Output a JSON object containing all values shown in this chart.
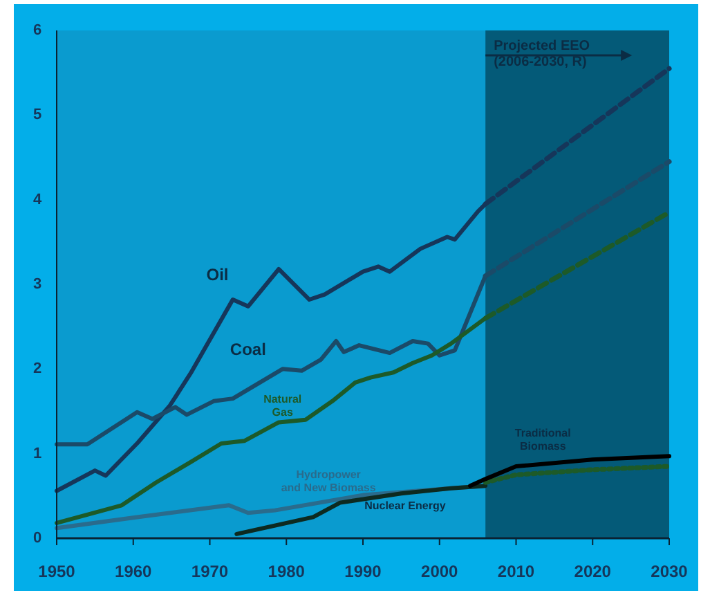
{
  "chart_data": {
    "type": "line",
    "xlim": [
      1950,
      2030
    ],
    "ylim": [
      0,
      6
    ],
    "xticks": [
      1950,
      1960,
      1970,
      1980,
      1990,
      2000,
      2010,
      2020,
      2030
    ],
    "yticks": [
      0,
      1,
      2,
      3,
      4,
      5,
      6
    ],
    "grid": false,
    "bands": [
      {
        "axis": "x",
        "from": 2006,
        "to": 2030,
        "label": "Projected EEO\n(2006-2030, R)",
        "color": "#045a78"
      }
    ],
    "series": [
      {
        "color": "#16365a",
        "line_style": "solid",
        "x": [
          1950,
          1955,
          1956.4,
          1960.6,
          1964.8,
          1967.5,
          1973,
          1975,
          1979,
          1983,
          1985,
          1990,
          1992,
          1993.5,
          1997.5,
          2001,
          2002,
          2005,
          2006
        ],
        "values": [
          0.56,
          0.8,
          0.74,
          1.13,
          1.57,
          1.95,
          2.82,
          2.74,
          3.18,
          2.82,
          2.88,
          3.15,
          3.21,
          3.15,
          3.42,
          3.56,
          3.53,
          3.86,
          3.95
        ]
      },
      {
        "color": "#16365a",
        "line_style": "dashed",
        "x": [
          2006,
          2030
        ],
        "values": [
          3.95,
          5.55
        ]
      },
      {
        "color": "#1b4a68",
        "line_style": "solid",
        "x": [
          1950,
          1954,
          1960.5,
          1962.5,
          1965.5,
          1967,
          1970.5,
          1973,
          1979.5,
          1982,
          1984.5,
          1986.5,
          1987.5,
          1989.5,
          1993.5,
          1996.5,
          1998.5,
          2000,
          2002,
          2004.5,
          2006
        ],
        "values": [
          1.11,
          1.11,
          1.49,
          1.41,
          1.55,
          1.46,
          1.62,
          1.65,
          2.0,
          1.98,
          2.11,
          2.33,
          2.2,
          2.28,
          2.19,
          2.33,
          2.3,
          2.16,
          2.22,
          2.77,
          3.1
        ]
      },
      {
        "color": "#1b4a68",
        "line_style": "dashed",
        "x": [
          2006,
          2030
        ],
        "values": [
          3.1,
          4.45
        ]
      },
      {
        "color": "#1d5a28",
        "line_style": "solid",
        "x": [
          1950,
          1958.5,
          1963,
          1967.5,
          1971.5,
          1974.5,
          1979,
          1982.5,
          1986,
          1989,
          1991,
          1994,
          1996.5,
          1999,
          2001.5,
          2006
        ],
        "values": [
          0.18,
          0.39,
          0.66,
          0.9,
          1.12,
          1.15,
          1.37,
          1.4,
          1.62,
          1.84,
          1.9,
          1.96,
          2.07,
          2.16,
          2.3,
          2.6
        ]
      },
      {
        "color": "#1d5a28",
        "line_style": "dashed",
        "x": [
          2006,
          2030
        ],
        "values": [
          2.6,
          3.85
        ]
      },
      {
        "color": "#2a6b8c",
        "line_style": "solid",
        "x": [
          1950,
          1960.5,
          1972.5,
          1975,
          1978.5,
          1990,
          2001.5,
          2006
        ],
        "values": [
          0.12,
          0.25,
          0.39,
          0.3,
          0.33,
          0.51,
          0.59,
          0.62
        ]
      },
      {
        "color": "#0d2a20",
        "line_style": "solid",
        "x": [
          1973.5,
          1983.5,
          1987,
          1995,
          2001.5,
          2006
        ],
        "values": [
          0.05,
          0.25,
          0.42,
          0.53,
          0.59,
          0.62
        ]
      },
      {
        "color": "#1d5a28",
        "line_style": "dotted",
        "x": [
          2006,
          2010,
          2020,
          2030
        ],
        "values": [
          0.66,
          0.75,
          0.81,
          0.85
        ]
      },
      {
        "color": "#000000",
        "line_style": "solid",
        "x": [
          2004,
          2006,
          2010,
          2020,
          2030
        ],
        "values": [
          0.62,
          0.7,
          0.85,
          0.93,
          0.97
        ]
      }
    ],
    "annotations": [
      "Oil",
      "Coal",
      "Natural\nGas",
      "Hydropower\nand New Biomass",
      "Nuclear Energy",
      "Traditional\nBiomass"
    ]
  }
}
